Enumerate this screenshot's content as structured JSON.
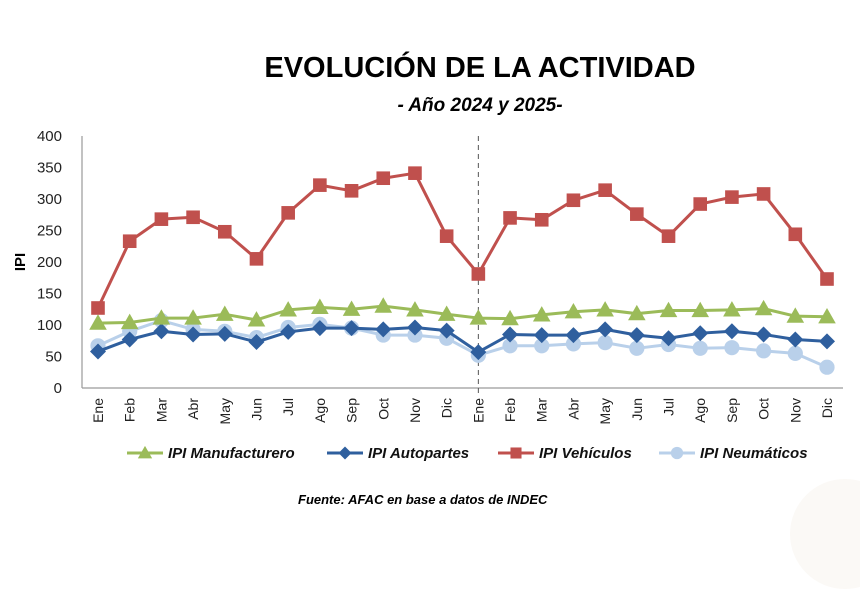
{
  "chart_data": {
    "type": "line",
    "title": "EVOLUCIÓN DE LA ACTIVIDAD",
    "subtitle": "- Año 2024 y 2025-",
    "xlabel": "",
    "ylabel": "IPI",
    "ylim": [
      0,
      400
    ],
    "yticks": [
      0,
      50,
      100,
      150,
      200,
      250,
      300,
      350,
      400
    ],
    "grid": false,
    "divider_after_index": 11,
    "categories": [
      "Ene",
      "Feb",
      "Mar",
      "Abr",
      "May",
      "Jun",
      "Jul",
      "Ago",
      "Sep",
      "Oct",
      "Nov",
      "Dic",
      "Ene",
      "Feb",
      "Mar",
      "Abr",
      "May",
      "Jun",
      "Jul",
      "Ago",
      "Sep",
      "Oct",
      "Nov",
      "Dic"
    ],
    "legend_position": "bottom",
    "series": [
      {
        "name": "IPI Manufacturero",
        "color": "#9bbb59",
        "marker": "triangle",
        "values": [
          103,
          104,
          111,
          111,
          117,
          108,
          124,
          128,
          125,
          130,
          124,
          117,
          111,
          110,
          116,
          121,
          124,
          118,
          123,
          123,
          124,
          126,
          114,
          113
        ]
      },
      {
        "name": "IPI Autopartes",
        "color": "#2f5f9e",
        "marker": "diamond",
        "values": [
          58,
          77,
          90,
          85,
          86,
          73,
          89,
          95,
          95,
          93,
          96,
          91,
          57,
          85,
          84,
          84,
          93,
          84,
          79,
          87,
          90,
          85,
          77,
          74
        ]
      },
      {
        "name": "IPI Vehículos",
        "color": "#c0504d",
        "marker": "square",
        "values": [
          127,
          233,
          268,
          271,
          248,
          205,
          278,
          322,
          313,
          333,
          341,
          241,
          181,
          270,
          267,
          298,
          314,
          276,
          241,
          292,
          303,
          308,
          244,
          173
        ]
      },
      {
        "name": "IPI Neumáticos",
        "color": "#b9d0ea",
        "marker": "circle",
        "values": [
          67,
          90,
          107,
          93,
          90,
          80,
          96,
          101,
          95,
          84,
          84,
          79,
          52,
          67,
          67,
          70,
          72,
          63,
          69,
          63,
          64,
          59,
          55,
          33
        ]
      }
    ],
    "source": "Fuente: AFAC en base a datos de INDEC"
  }
}
